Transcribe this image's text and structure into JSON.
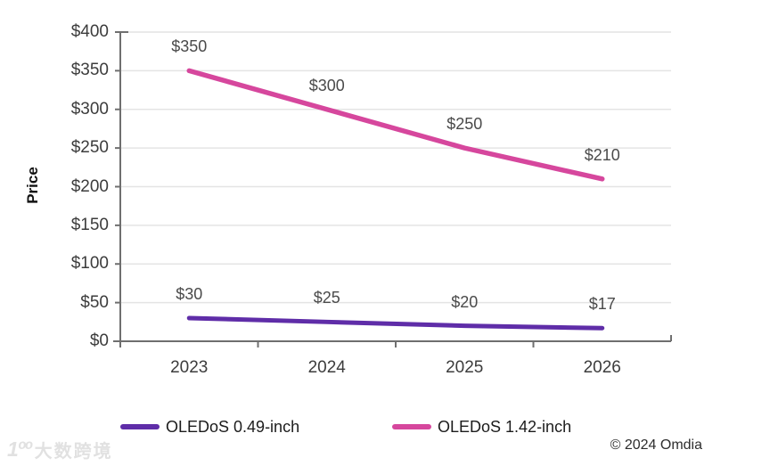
{
  "chart_data": {
    "type": "line",
    "title": "",
    "ylabel": "Price",
    "xlabel": "",
    "categories": [
      "2023",
      "2024",
      "2025",
      "2026"
    ],
    "series": [
      {
        "name": "OLEDoS 0.49-inch",
        "color": "#5f2da8",
        "line_width": 5,
        "values": [
          30,
          25,
          20,
          17
        ],
        "point_labels": [
          "$30",
          "$25",
          "$20",
          "$17"
        ]
      },
      {
        "name": "OLEDoS 1.42-inch",
        "color": "#d6479d",
        "line_width": 5.5,
        "values": [
          350,
          300,
          250,
          210
        ],
        "point_labels": [
          "$350",
          "$300",
          "$250",
          "$210"
        ]
      }
    ],
    "ylim": [
      0,
      400
    ],
    "y_ticks": [
      {
        "value": 0,
        "label": "$0"
      },
      {
        "value": 50,
        "label": "$50"
      },
      {
        "value": 100,
        "label": "$100"
      },
      {
        "value": 150,
        "label": "$150"
      },
      {
        "value": 200,
        "label": "$200"
      },
      {
        "value": 250,
        "label": "$250"
      },
      {
        "value": 300,
        "label": "$300"
      },
      {
        "value": 350,
        "label": "$350"
      },
      {
        "value": 400,
        "label": "$400"
      }
    ],
    "grid": true,
    "legend_position": "bottom",
    "axis_color": "#6f6f6f",
    "grid_color": "#e4e4e4"
  },
  "footer": {
    "copyright": "© 2024 Omdia"
  },
  "watermark": {
    "logo": "1ºº",
    "text": "大数跨境"
  }
}
